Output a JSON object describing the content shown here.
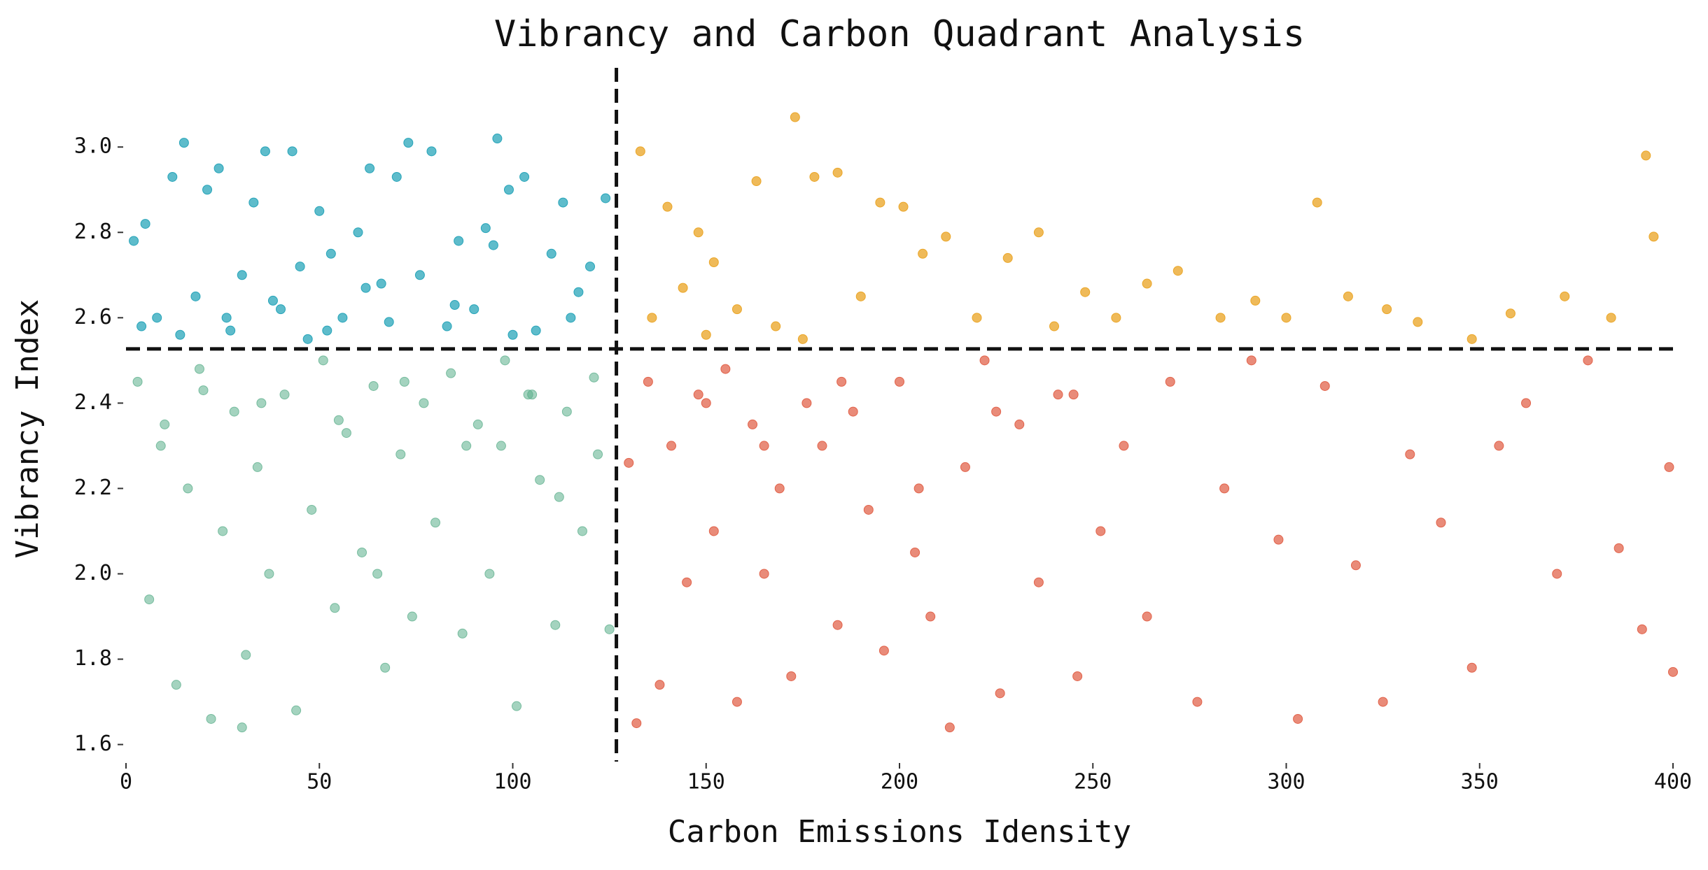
{
  "chart_data": {
    "type": "scatter",
    "title": "Vibrancy and Carbon Quadrant Analysis",
    "xlabel": "Carbon Emissions Idensity",
    "ylabel": "Vibrancy Index",
    "xlim": [
      0,
      400
    ],
    "ylim": [
      1.56,
      3.12
    ],
    "xticks": [
      0,
      50,
      100,
      150,
      200,
      250,
      300,
      350,
      400
    ],
    "yticks": [
      1.6,
      1.8,
      {
        "value": 2,
        "label": "2.0"
      },
      2.2,
      2.4,
      2.6,
      2.8,
      {
        "value": 3,
        "label": "3.0"
      }
    ],
    "x_threshold": 126.8,
    "y_threshold": 2.527,
    "series": [
      {
        "color": "#1a9fb5",
        "opacity": 0.7,
        "x": [
          2,
          5,
          8,
          12,
          15,
          18,
          21,
          24,
          27,
          30,
          33,
          36,
          40,
          43,
          47,
          50,
          53,
          56,
          60,
          63,
          66,
          70,
          73,
          76,
          79,
          83,
          86,
          90,
          93,
          96,
          99,
          103,
          106,
          110,
          113,
          117,
          120,
          124,
          4,
          14,
          26,
          38,
          52,
          68,
          85,
          100,
          115,
          45,
          62,
          95
        ],
        "values": [
          2.78,
          2.82,
          2.6,
          2.93,
          3.01,
          2.65,
          2.9,
          2.95,
          2.57,
          2.7,
          2.87,
          2.99,
          2.62,
          2.99,
          2.55,
          2.85,
          2.75,
          2.6,
          2.8,
          2.95,
          2.68,
          2.93,
          3.01,
          2.7,
          2.99,
          2.58,
          2.78,
          2.62,
          2.81,
          3.02,
          2.9,
          2.93,
          2.57,
          2.75,
          2.87,
          2.66,
          2.72,
          2.88,
          2.58,
          2.56,
          2.6,
          2.64,
          2.57,
          2.59,
          2.63,
          2.56,
          2.6,
          2.72,
          2.67,
          2.77
        ]
      },
      {
        "color": "#5aae8a",
        "opacity": 0.55,
        "x": [
          3,
          6,
          9,
          13,
          16,
          19,
          22,
          25,
          28,
          31,
          34,
          37,
          41,
          44,
          48,
          51,
          54,
          57,
          61,
          64,
          67,
          71,
          74,
          77,
          80,
          84,
          87,
          91,
          94,
          97,
          101,
          104,
          107,
          111,
          114,
          118,
          121,
          125,
          10,
          20,
          35,
          55,
          72,
          88,
          105,
          122,
          30,
          65,
          98,
          112
        ],
        "values": [
          2.45,
          1.94,
          2.3,
          1.74,
          2.2,
          2.48,
          1.66,
          2.1,
          2.38,
          1.81,
          2.25,
          2.0,
          2.42,
          1.68,
          2.15,
          2.5,
          1.92,
          2.33,
          2.05,
          2.44,
          1.78,
          2.28,
          1.9,
          2.4,
          2.12,
          2.47,
          1.86,
          2.35,
          2.0,
          2.3,
          1.69,
          2.42,
          2.22,
          1.88,
          2.38,
          2.1,
          2.46,
          1.87,
          2.35,
          2.43,
          2.4,
          2.36,
          2.45,
          2.3,
          2.42,
          2.28,
          1.64,
          2.0,
          2.5,
          2.18
        ]
      },
      {
        "color": "#eaa322",
        "opacity": 0.75,
        "x": [
          133,
          136,
          140,
          144,
          148,
          152,
          158,
          163,
          168,
          173,
          178,
          184,
          190,
          195,
          201,
          206,
          212,
          220,
          228,
          236,
          240,
          248,
          256,
          264,
          272,
          283,
          292,
          300,
          308,
          316,
          326,
          334,
          348,
          358,
          372,
          384,
          393,
          395,
          150,
          175
        ],
        "values": [
          2.99,
          2.6,
          2.86,
          2.67,
          2.8,
          2.73,
          2.62,
          2.92,
          2.58,
          3.07,
          2.93,
          2.94,
          2.65,
          2.87,
          2.86,
          2.75,
          2.79,
          2.6,
          2.74,
          2.8,
          2.58,
          2.66,
          2.6,
          2.68,
          2.71,
          2.6,
          2.64,
          2.6,
          2.87,
          2.65,
          2.62,
          2.59,
          2.55,
          2.61,
          2.65,
          2.6,
          2.98,
          2.79,
          2.56,
          2.55
        ]
      },
      {
        "color": "#e05a40",
        "opacity": 0.7,
        "x": [
          130,
          132,
          135,
          138,
          141,
          145,
          148,
          152,
          155,
          158,
          162,
          165,
          169,
          172,
          176,
          180,
          184,
          188,
          192,
          196,
          200,
          204,
          208,
          213,
          217,
          222,
          226,
          231,
          236,
          241,
          246,
          252,
          258,
          264,
          270,
          277,
          284,
          291,
          298,
          303,
          310,
          318,
          325,
          332,
          340,
          348,
          355,
          362,
          370,
          378,
          386,
          392,
          399,
          400,
          150,
          165,
          185,
          205,
          225,
          245
        ],
        "values": [
          2.26,
          1.65,
          2.45,
          1.74,
          2.3,
          1.98,
          2.42,
          2.1,
          2.48,
          1.7,
          2.35,
          2.0,
          2.2,
          1.76,
          2.4,
          2.3,
          1.88,
          2.38,
          2.15,
          1.82,
          2.45,
          2.05,
          1.9,
          1.64,
          2.25,
          2.5,
          1.72,
          2.35,
          1.98,
          2.42,
          1.76,
          2.1,
          2.3,
          1.9,
          2.45,
          1.7,
          2.2,
          2.5,
          2.08,
          1.66,
          2.44,
          2.02,
          1.7,
          2.28,
          2.12,
          1.78,
          2.3,
          2.4,
          2.0,
          2.5,
          2.06,
          1.87,
          2.25,
          1.77,
          2.4,
          2.3,
          2.45,
          2.2,
          2.38,
          2.42
        ]
      }
    ]
  }
}
